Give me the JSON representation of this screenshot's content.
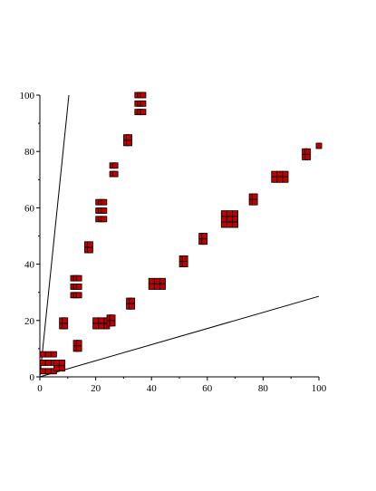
{
  "chart_data": {
    "type": "scatter",
    "xlim": [
      0,
      100
    ],
    "ylim": [
      0,
      100
    ],
    "xticks": [
      0,
      20,
      40,
      60,
      80,
      100
    ],
    "yticks": [
      0,
      20,
      40,
      60,
      80,
      100
    ],
    "xminorticks": [
      10,
      30,
      50,
      70,
      90
    ],
    "yminorticks": [
      10,
      30,
      50,
      70,
      90
    ],
    "color": "#c00000",
    "line_color": "#000000",
    "x": [
      1,
      1,
      1,
      3,
      3,
      3,
      5,
      5,
      5,
      6,
      6,
      8,
      8,
      8,
      8,
      9,
      9,
      12,
      12,
      12,
      13,
      13,
      13,
      14,
      14,
      14,
      17,
      17,
      18,
      18,
      21,
      21,
      21,
      22,
      22,
      22,
      23,
      23,
      23,
      26,
      26,
      27,
      27,
      31,
      31,
      32,
      32,
      35,
      35,
      35,
      36,
      36,
      36,
      37,
      37,
      37,
      13,
      13,
      14,
      14,
      20,
      20,
      22,
      22,
      24,
      24,
      25,
      25,
      26,
      26,
      32,
      32,
      33,
      33,
      40,
      40,
      42,
      42,
      44,
      44,
      51,
      51,
      52,
      52,
      58,
      58,
      59,
      59,
      66,
      66,
      66,
      68,
      68,
      68,
      70,
      70,
      70,
      76,
      76,
      77,
      77,
      84,
      84,
      86,
      86,
      88,
      88,
      95,
      95,
      96,
      96,
      100
    ],
    "values": [
      2,
      5,
      8,
      2,
      5,
      8,
      2,
      5,
      8,
      3,
      5,
      3,
      5,
      18,
      20,
      18,
      20,
      29,
      32,
      35,
      29,
      32,
      35,
      29,
      32,
      35,
      45,
      47,
      45,
      47,
      56,
      59,
      62,
      56,
      59,
      62,
      56,
      59,
      62,
      72,
      75,
      72,
      75,
      83,
      85,
      83,
      85,
      94,
      97,
      100,
      94,
      97,
      100,
      94,
      97,
      100,
      10,
      12,
      10,
      12,
      18,
      20,
      18,
      20,
      18,
      20,
      19,
      21,
      19,
      21,
      25,
      27,
      25,
      27,
      32,
      34,
      32,
      34,
      32,
      34,
      40,
      42,
      40,
      42,
      48,
      50,
      48,
      50,
      54,
      56,
      58,
      54,
      56,
      58,
      54,
      56,
      58,
      62,
      64,
      62,
      64,
      70,
      72,
      70,
      72,
      70,
      72,
      78,
      80,
      78,
      80,
      82
    ],
    "lines": [
      {
        "x": [
          0,
          10.4
        ],
        "values": [
          0,
          100
        ]
      },
      {
        "x": [
          0,
          100
        ],
        "values": [
          0,
          28.6
        ]
      }
    ]
  }
}
